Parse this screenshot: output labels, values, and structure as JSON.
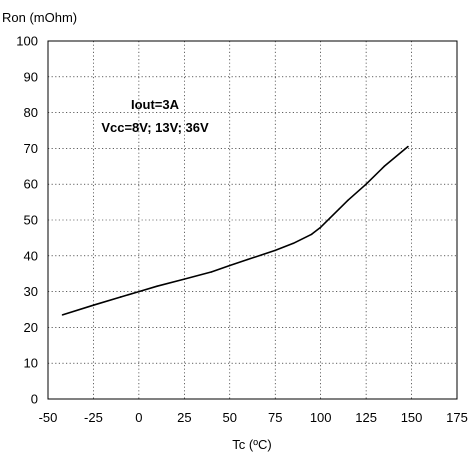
{
  "chart_data": {
    "type": "line",
    "ylabel": "Ron (mOhm)",
    "xlabel": "Tc (ºC)",
    "xlim": [
      -50,
      175
    ],
    "ylim": [
      0,
      100
    ],
    "xticks": [
      -50,
      -25,
      0,
      25,
      50,
      75,
      100,
      125,
      150,
      175
    ],
    "yticks": [
      0,
      10,
      20,
      30,
      40,
      50,
      60,
      70,
      80,
      90,
      100
    ],
    "grid": true,
    "annotations": [
      "Iout=3A",
      "Vcc=8V; 13V; 36V"
    ],
    "series": [
      {
        "color": "#000000",
        "x": [
          -42,
          -25,
          -10,
          0,
          10,
          25,
          40,
          50,
          60,
          75,
          85,
          95,
          100,
          105,
          110,
          115,
          125,
          135,
          148
        ],
        "y": [
          23.5,
          26.2,
          28.5,
          30.0,
          31.5,
          33.5,
          35.5,
          37.3,
          39.0,
          41.5,
          43.5,
          46.0,
          48.0,
          50.5,
          53.0,
          55.5,
          60.0,
          65.0,
          70.5
        ]
      }
    ]
  }
}
